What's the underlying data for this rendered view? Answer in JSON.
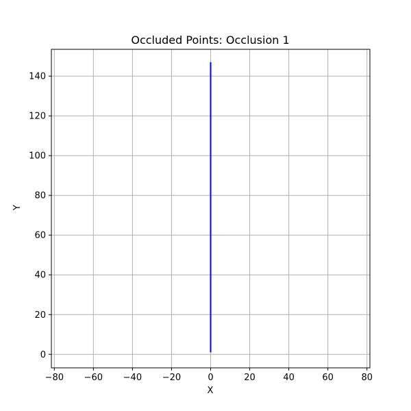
{
  "chart_data": {
    "type": "line",
    "title": "Occluded Points: Occlusion 1",
    "xlabel": "X",
    "ylabel": "Y",
    "xlim": [
      -81.5,
      81.5
    ],
    "ylim": [
      -6.8,
      153.5
    ],
    "xticks": [
      -80,
      -60,
      -40,
      -20,
      0,
      20,
      40,
      60,
      80
    ],
    "yticks": [
      0,
      20,
      40,
      60,
      80,
      100,
      120,
      140
    ],
    "grid": true,
    "series": [
      {
        "color": "#0000ff",
        "x": [
          0,
          0
        ],
        "y": [
          1,
          147
        ]
      }
    ]
  },
  "colors": {
    "grid": "#b0b0b0",
    "axes": "#000000",
    "background": "#ffffff"
  }
}
